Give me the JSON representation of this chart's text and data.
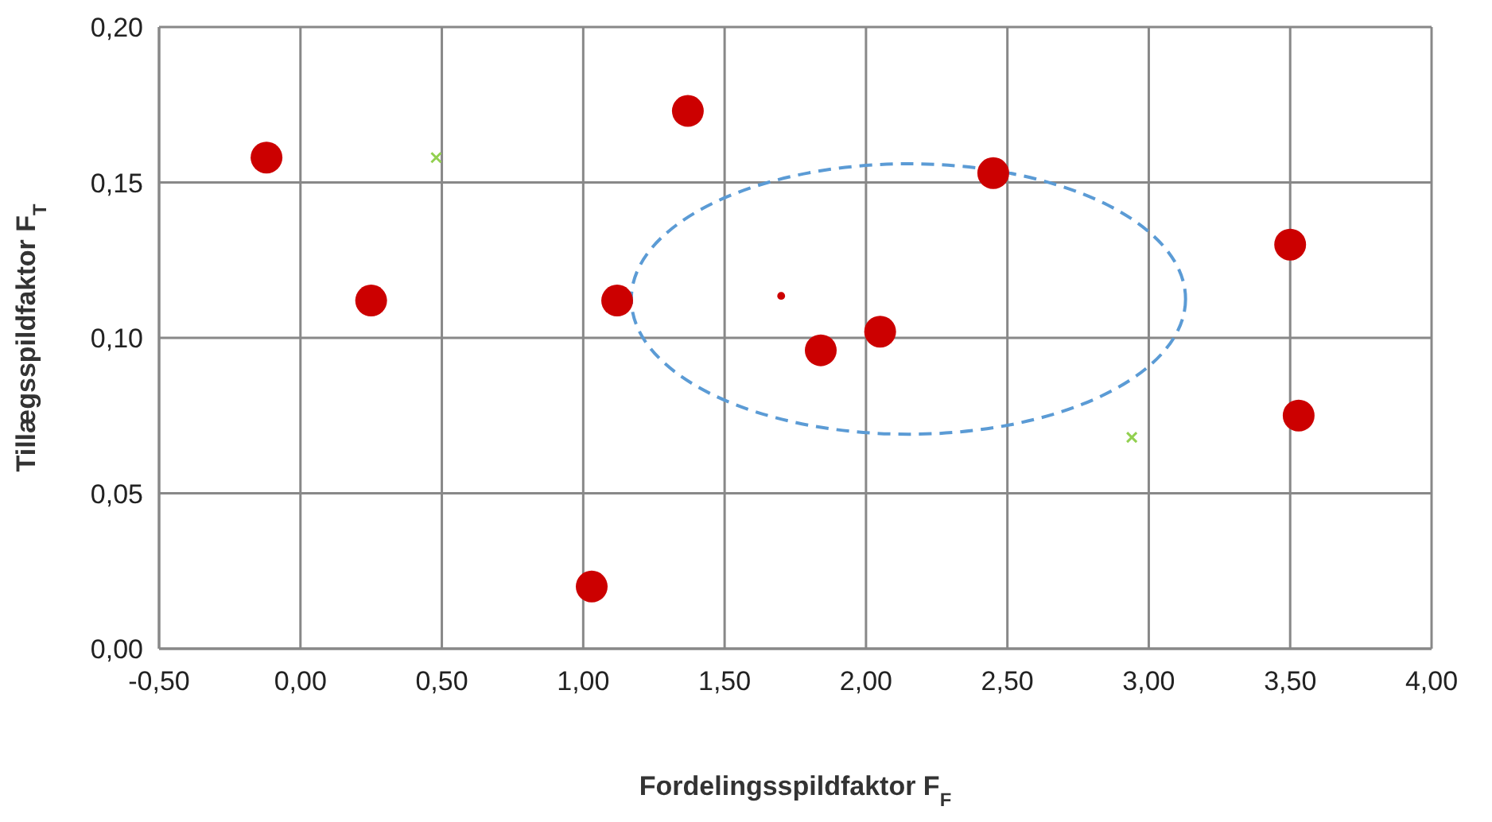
{
  "chart_data": {
    "xlabel": "Fordelingsspildfaktor F$_{F}$",
    "ylabel": "Tillægsspildfaktor F$_{T}$",
    "type": "bubble",
    "xlim": [
      -0.5,
      4
    ],
    "ylim": [
      0,
      0.2
    ],
    "xticks": [
      {
        "value": -0.5,
        "label": "-0,50"
      },
      {
        "value": 0,
        "label": "0,00"
      },
      {
        "value": 0.5,
        "label": "0,50"
      },
      {
        "value": 1,
        "label": "1,00"
      },
      {
        "value": 1.5,
        "label": "1,50"
      },
      {
        "value": 2,
        "label": "2,00"
      },
      {
        "value": 2.5,
        "label": "2,50"
      },
      {
        "value": 3,
        "label": "3,00"
      },
      {
        "value": 3.5,
        "label": "3,50"
      },
      {
        "value": 4,
        "label": "4,00"
      }
    ],
    "yticks": [
      {
        "value": 0,
        "label": "0,00"
      },
      {
        "value": 0.05,
        "label": "0,05"
      },
      {
        "value": 0.1,
        "label": "0,10"
      },
      {
        "value": 0.15,
        "label": "0,15"
      },
      {
        "value": 0.2,
        "label": "0,20"
      }
    ],
    "grid": true,
    "legend": false,
    "series": [
      {
        "color": "#cc0000",
        "x": [
          -0.12,
          0.25,
          1.12,
          1.37,
          1.03,
          1.84,
          2.05,
          2.45,
          3.5,
          3.53,
          1.7
        ],
        "values": [
          0.158,
          0.112,
          0.112,
          0.173,
          0.02,
          0.096,
          0.102,
          0.153,
          0.13,
          0.075,
          0.1135
        ],
        "sizes": [
          1,
          1,
          1,
          1,
          1,
          1,
          1,
          1,
          1,
          1,
          0.06
        ]
      },
      {
        "type": "scatter",
        "color": "#92d050",
        "marker": "cross",
        "x": [
          0.48,
          2.94
        ],
        "values": [
          0.158,
          0.068
        ]
      }
    ]
  }
}
